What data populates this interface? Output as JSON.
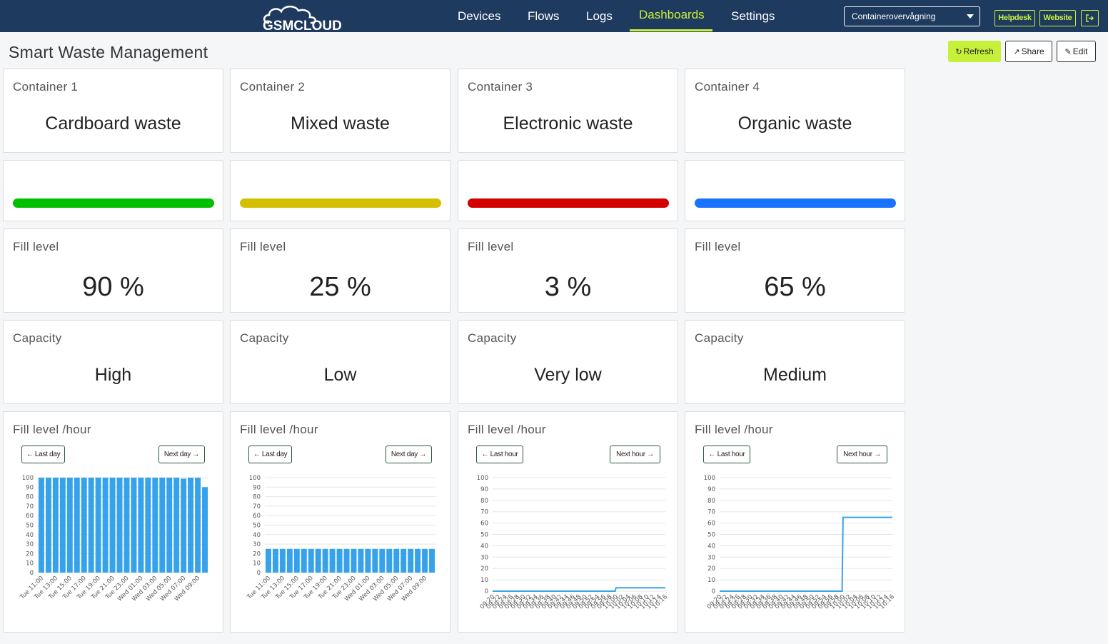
{
  "nav": {
    "logo_text": "GSMCLOUD",
    "items": [
      "Devices",
      "Flows",
      "Logs",
      "Dashboards",
      "Settings"
    ],
    "active_index": 3,
    "dashboard_select": "Containerovervågning",
    "helpdesk": "Helpdesk",
    "website": "Website"
  },
  "page": {
    "title": "Smart Waste Management",
    "refresh": "Refresh",
    "share": "Share",
    "edit": "Edit"
  },
  "containers": [
    {
      "label": "Container 1",
      "type": "Cardboard waste",
      "color": "#00c000",
      "fill_label": "Fill level",
      "fill": "90 %",
      "cap_label": "Capacity",
      "capacity": "High",
      "chart_label": "Fill level /hour",
      "prev": "Last day",
      "next": "Next day"
    },
    {
      "label": "Container 2",
      "type": "Mixed waste",
      "color": "#d4c000",
      "fill_label": "Fill level",
      "fill": "25 %",
      "cap_label": "Capacity",
      "capacity": "Low",
      "chart_label": "Fill level /hour",
      "prev": "Last day",
      "next": "Next day"
    },
    {
      "label": "Container 3",
      "type": "Electronic waste",
      "color": "#d40000",
      "fill_label": "Fill level",
      "fill": "3 %",
      "cap_label": "Capacity",
      "capacity": "Very low",
      "chart_label": "Fill level /hour",
      "prev": "Last hour",
      "next": "Next hour"
    },
    {
      "label": "Container 4",
      "type": "Organic waste",
      "color": "#1a73ff",
      "fill_label": "Fill level",
      "fill": "65 %",
      "cap_label": "Capacity",
      "capacity": "Medium",
      "chart_label": "Fill level /hour",
      "prev": "Last hour",
      "next": "Next hour"
    }
  ],
  "chart_data": [
    {
      "type": "bar",
      "ylim": [
        0,
        100
      ],
      "yticks": [
        0,
        10,
        20,
        30,
        40,
        50,
        60,
        70,
        80,
        90,
        100
      ],
      "color": "#36a2eb",
      "categories": [
        "Tue 11:00",
        "Tue 12:00",
        "Tue 13:00",
        "Tue 14:00",
        "Tue 15:00",
        "Tue 16:00",
        "Tue 17:00",
        "Tue 18:00",
        "Tue 19:00",
        "Tue 20:00",
        "Tue 21:00",
        "Tue 22:00",
        "Tue 23:00",
        "Wed 00:00",
        "Wed 01:00",
        "Wed 02:00",
        "Wed 03:00",
        "Wed 04:00",
        "Wed 05:00",
        "Wed 06:00",
        "Wed 07:00",
        "Wed 08:00",
        "Wed 09:00",
        "Wed 10:00"
      ],
      "shown_labels": [
        "Tue 11:00",
        "Tue 13:00",
        "Tue 15:00",
        "Tue 17:00",
        "Tue 19:00",
        "Tue 21:00",
        "Tue 23:00",
        "Wed 01:00",
        "Wed 03:00",
        "Wed 05:00",
        "Wed 07:00",
        "Wed 09:00"
      ],
      "values": [
        100,
        100,
        100,
        100,
        100,
        100,
        100,
        100,
        100,
        100,
        100,
        100,
        100,
        100,
        100,
        100,
        100,
        100,
        100,
        100,
        99,
        100,
        100,
        90
      ]
    },
    {
      "type": "bar",
      "ylim": [
        0,
        100
      ],
      "yticks": [
        0,
        10,
        20,
        30,
        40,
        50,
        60,
        70,
        80,
        90,
        100
      ],
      "color": "#36a2eb",
      "categories": [
        "Tue 11:00",
        "Tue 12:00",
        "Tue 13:00",
        "Tue 14:00",
        "Tue 15:00",
        "Tue 16:00",
        "Tue 17:00",
        "Tue 18:00",
        "Tue 19:00",
        "Tue 20:00",
        "Tue 21:00",
        "Tue 22:00",
        "Tue 23:00",
        "Wed 00:00",
        "Wed 01:00",
        "Wed 02:00",
        "Wed 03:00",
        "Wed 04:00",
        "Wed 05:00",
        "Wed 06:00",
        "Wed 07:00",
        "Wed 08:00",
        "Wed 09:00",
        "Wed 10:00"
      ],
      "shown_labels": [
        "Tue 11:00",
        "Tue 13:00",
        "Tue 15:00",
        "Tue 17:00",
        "Tue 19:00",
        "Tue 21:00",
        "Tue 23:00",
        "Wed 01:00",
        "Wed 03:00",
        "Wed 05:00",
        "Wed 07:00",
        "Wed 09:00"
      ],
      "values": [
        25,
        25,
        25,
        25,
        25,
        25,
        25,
        25,
        25,
        25,
        25,
        25,
        25,
        25,
        25,
        25,
        25,
        25,
        25,
        25,
        25,
        25,
        25,
        25
      ]
    },
    {
      "type": "line",
      "ylim": [
        0,
        100
      ],
      "yticks": [
        0,
        10,
        20,
        30,
        40,
        50,
        60,
        70,
        80,
        90,
        100
      ],
      "color": "#36a2eb",
      "x": [
        "09:20",
        "09:22",
        "09:24",
        "09:26",
        "09:28",
        "09:30",
        "09:32",
        "09:34",
        "09:36",
        "09:38",
        "09:40",
        "09:42",
        "09:44",
        "09:46",
        "09:48",
        "09:50",
        "09:52",
        "09:54",
        "09:56",
        "09:58",
        "10:00",
        "10:02",
        "10:04",
        "10:06",
        "10:08",
        "10:10",
        "10:12",
        "10:14",
        "10:16"
      ],
      "values": [
        0,
        0,
        0,
        0,
        0,
        0,
        0,
        0,
        0,
        0,
        0,
        0,
        0,
        0,
        0,
        0,
        0,
        0,
        0,
        0,
        3,
        3,
        3,
        3,
        3,
        3,
        3,
        3,
        3
      ]
    },
    {
      "type": "line",
      "ylim": [
        0,
        100
      ],
      "yticks": [
        0,
        10,
        20,
        30,
        40,
        50,
        60,
        70,
        80,
        90,
        100
      ],
      "color": "#36a2eb",
      "x": [
        "09:20",
        "09:22",
        "09:24",
        "09:26",
        "09:28",
        "09:30",
        "09:32",
        "09:34",
        "09:36",
        "09:38",
        "09:40",
        "09:42",
        "09:44",
        "09:46",
        "09:48",
        "09:50",
        "09:52",
        "09:54",
        "09:56",
        "09:58",
        "10:00",
        "10:02",
        "10:04",
        "10:06",
        "10:08",
        "10:10",
        "10:12",
        "10:14",
        "10:16"
      ],
      "values": [
        0,
        0,
        0,
        0,
        0,
        0,
        0,
        0,
        0,
        0,
        0,
        0,
        0,
        0,
        0,
        0,
        0,
        0,
        0,
        0,
        65,
        65,
        65,
        65,
        65,
        65,
        65,
        65,
        65
      ]
    }
  ]
}
